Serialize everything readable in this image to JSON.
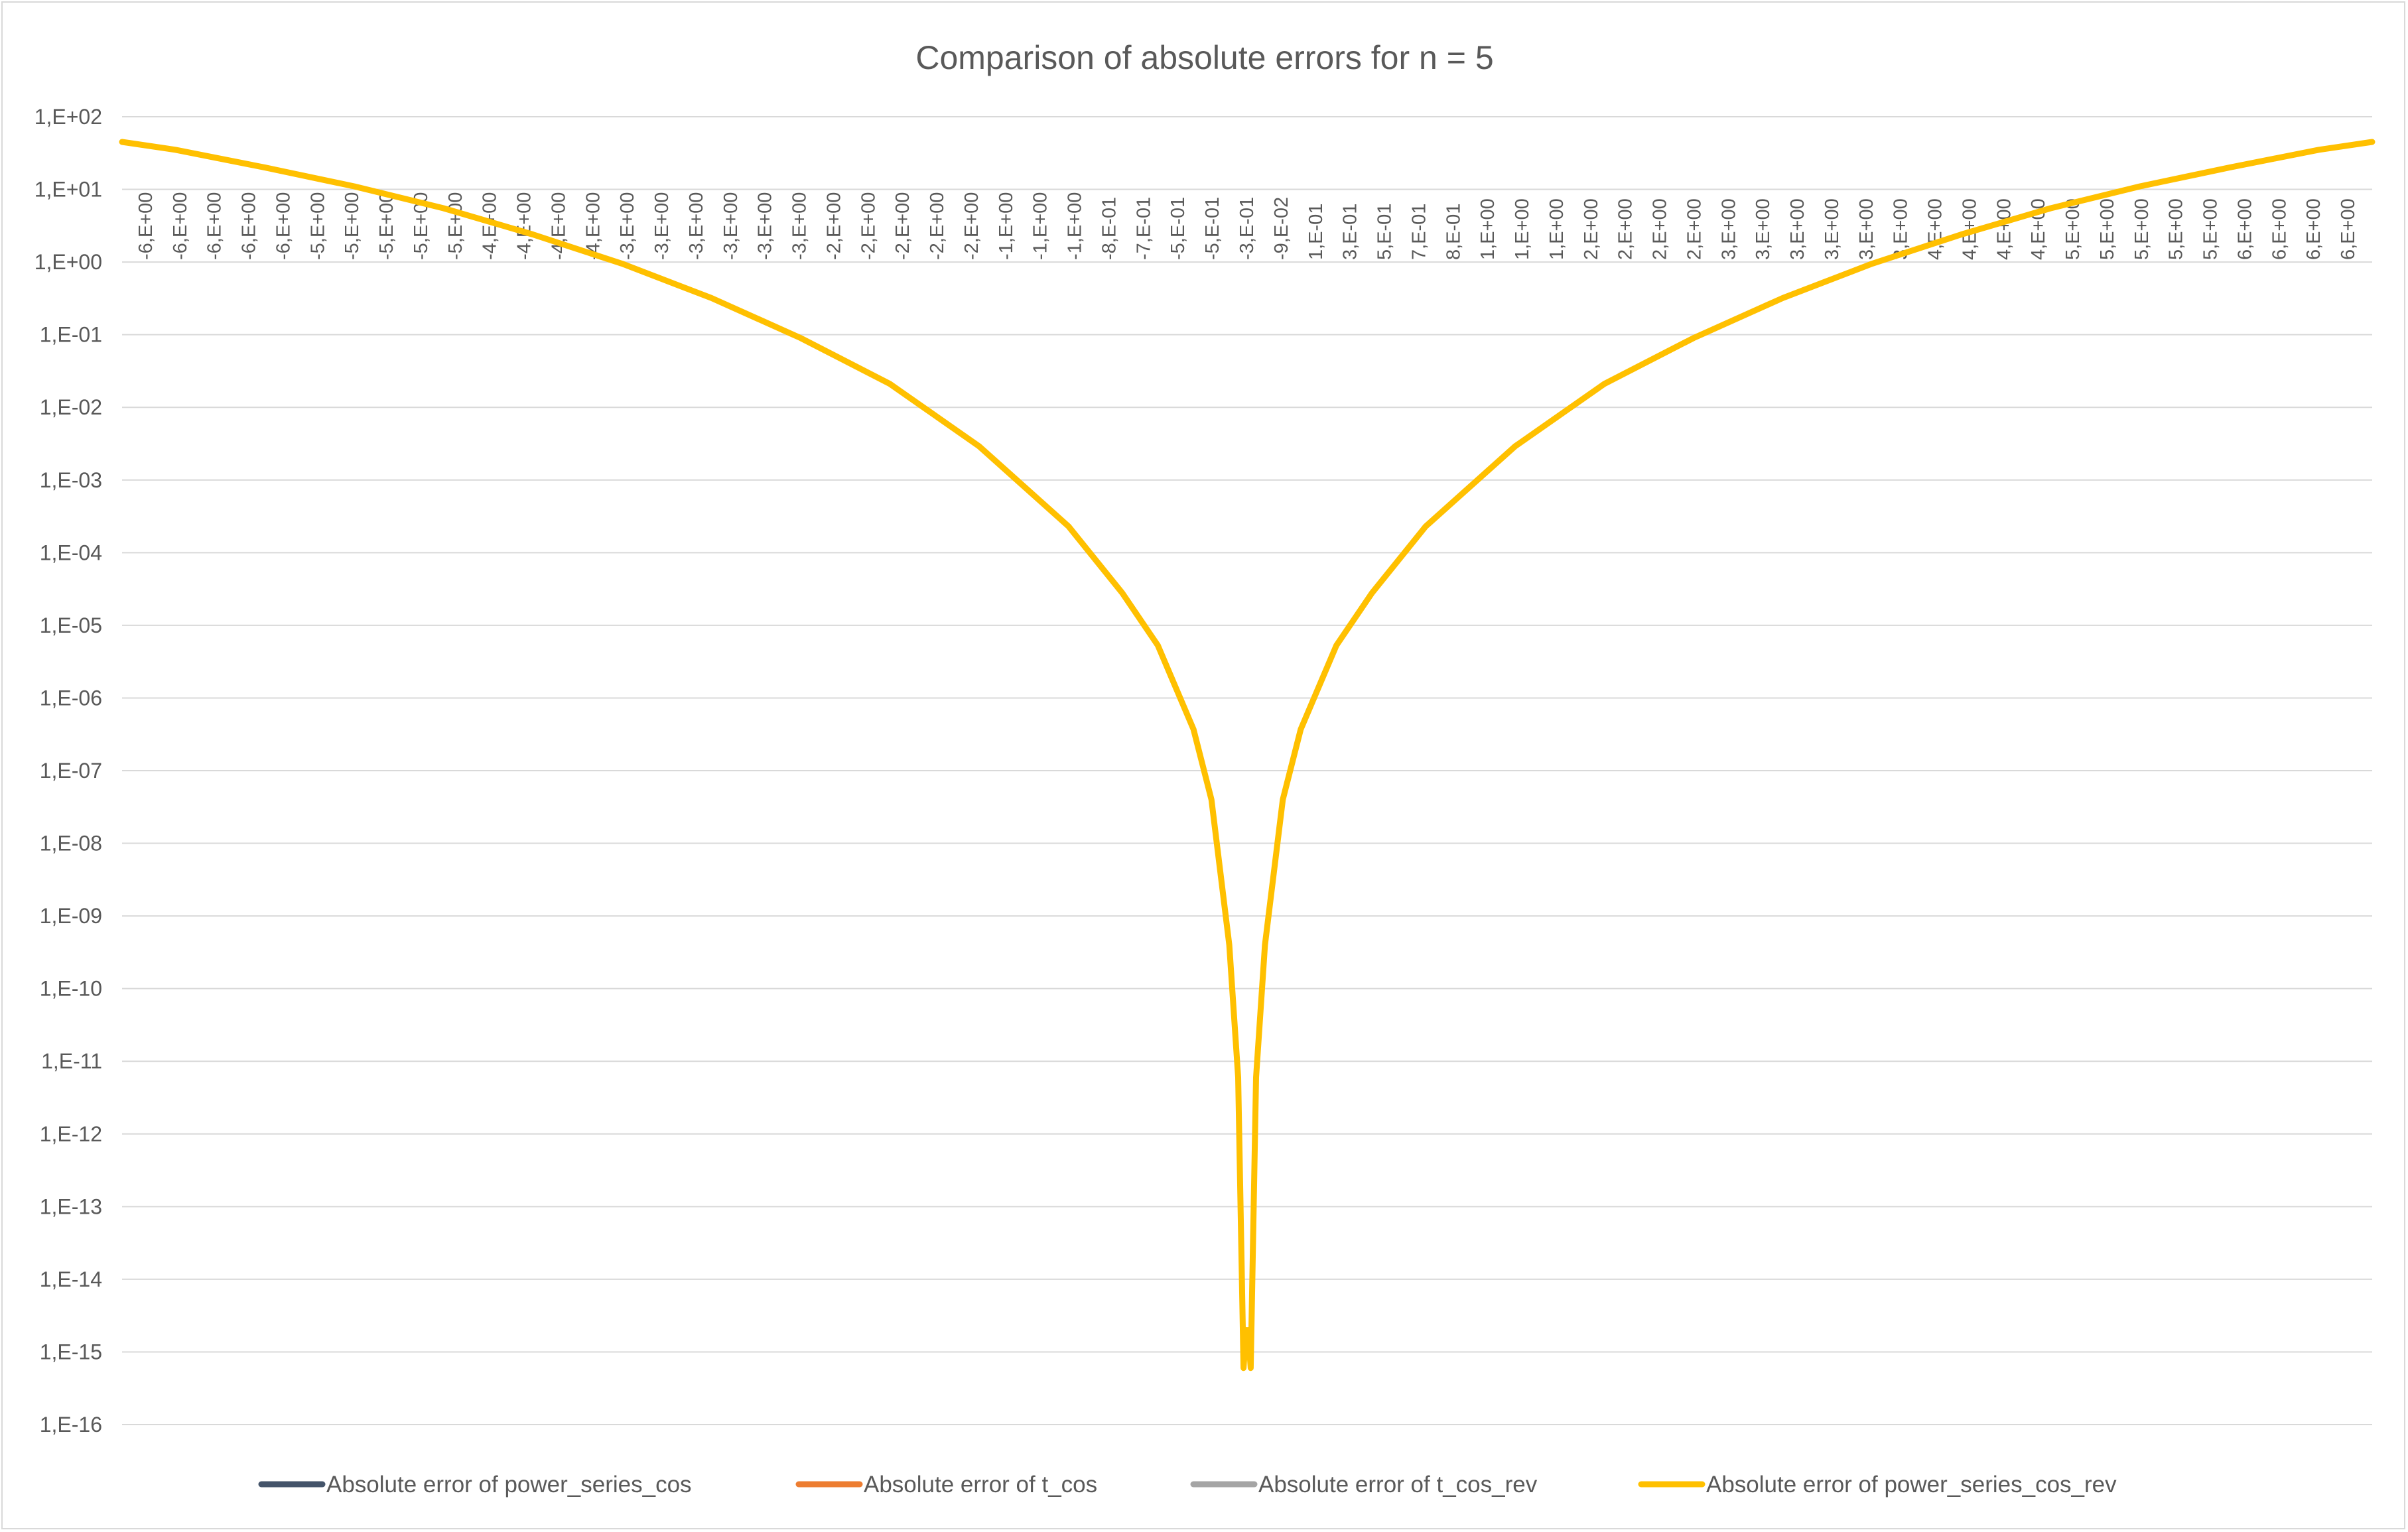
{
  "chart_data": {
    "type": "line",
    "title": "Comparison of absolute errors for n = 5",
    "xlabel": "",
    "ylabel": "",
    "y_scale": "log",
    "ylim": [
      1e-16,
      100
    ],
    "grid": true,
    "legend_position": "bottom",
    "y_tick_labels": [
      "1,E+02",
      "1,E+01",
      "1,E+00",
      "1,E-01",
      "1,E-02",
      "1,E-03",
      "1,E-04",
      "1,E-05",
      "1,E-06",
      "1,E-07",
      "1,E-08",
      "1,E-09",
      "1,E-10",
      "1,E-11",
      "1,E-12",
      "1,E-13",
      "1,E-14",
      "1,E-15",
      "1,E-16"
    ],
    "x_tick_labels": [
      "-6,E+00",
      "-6,E+00",
      "-6,E+00",
      "-6,E+00",
      "-6,E+00",
      "-5,E+00",
      "-5,E+00",
      "-5,E+00",
      "-5,E+00",
      "-5,E+00",
      "-4,E+00",
      "-4,E+00",
      "-4,E+00",
      "-4,E+00",
      "-3,E+00",
      "-3,E+00",
      "-3,E+00",
      "-3,E+00",
      "-3,E+00",
      "-3,E+00",
      "-2,E+00",
      "-2,E+00",
      "-2,E+00",
      "-2,E+00",
      "-2,E+00",
      "-1,E+00",
      "-1,E+00",
      "-1,E+00",
      "-8,E-01",
      "-7,E-01",
      "-5,E-01",
      "-5,E-01",
      "-3,E-01",
      "-9,E-02",
      "1,E-01",
      "3,E-01",
      "5,E-01",
      "7,E-01",
      "8,E-01",
      "1,E+00",
      "1,E+00",
      "1,E+00",
      "2,E+00",
      "2,E+00",
      "2,E+00",
      "2,E+00",
      "3,E+00",
      "3,E+00",
      "3,E+00",
      "3,E+00",
      "3,E+00",
      "3,E+00",
      "4,E+00",
      "4,E+00",
      "4,E+00",
      "4,E+00",
      "5,E+00",
      "5,E+00",
      "5,E+00",
      "5,E+00",
      "5,E+00",
      "6,E+00",
      "6,E+00",
      "6,E+00",
      "6,E+00"
    ],
    "x_range": [
      -6.3,
      6.3
    ],
    "series": [
      {
        "name": "Absolute error of power_series_cos",
        "color": "#44546a",
        "x": [],
        "y": []
      },
      {
        "name": "Absolute error of t_cos",
        "color": "#ed7d31",
        "x": [],
        "y": []
      },
      {
        "name": "Absolute error of t_cos_rev",
        "color": "#a5a5a5",
        "x": [],
        "y": []
      },
      {
        "name": "Absolute error of power_series_cos_rev",
        "color": "#ffc000",
        "x": [
          -6.3,
          -6.0,
          -5.5,
          -5.0,
          -4.5,
          -4.0,
          -3.5,
          -3.0,
          -2.5,
          -2.0,
          -1.5,
          -1.0,
          -0.7,
          -0.5,
          -0.3,
          -0.2,
          -0.1,
          -0.05,
          -0.02,
          -0.005,
          0.0,
          0.005,
          0.02,
          0.05,
          0.1,
          0.2,
          0.3,
          0.5,
          0.7,
          1.0,
          1.5,
          2.0,
          2.5,
          3.0,
          3.5,
          4.0,
          4.5,
          5.0,
          5.5,
          6.0,
          6.3
        ],
        "y": [
          45,
          35,
          20,
          11,
          5.5,
          2.4,
          0.95,
          0.32,
          0.09,
          0.021,
          0.0029,
          0.00023,
          2.8e-05,
          5.3e-06,
          3.7e-07,
          4e-08,
          4e-10,
          6e-12,
          6e-16,
          2e-15,
          1e-15,
          2e-15,
          6e-16,
          6e-12,
          4e-10,
          4e-08,
          3.7e-07,
          5.3e-06,
          2.8e-05,
          0.00023,
          0.0029,
          0.021,
          0.09,
          0.32,
          0.95,
          2.4,
          5.5,
          11,
          20,
          35,
          45
        ]
      }
    ]
  }
}
